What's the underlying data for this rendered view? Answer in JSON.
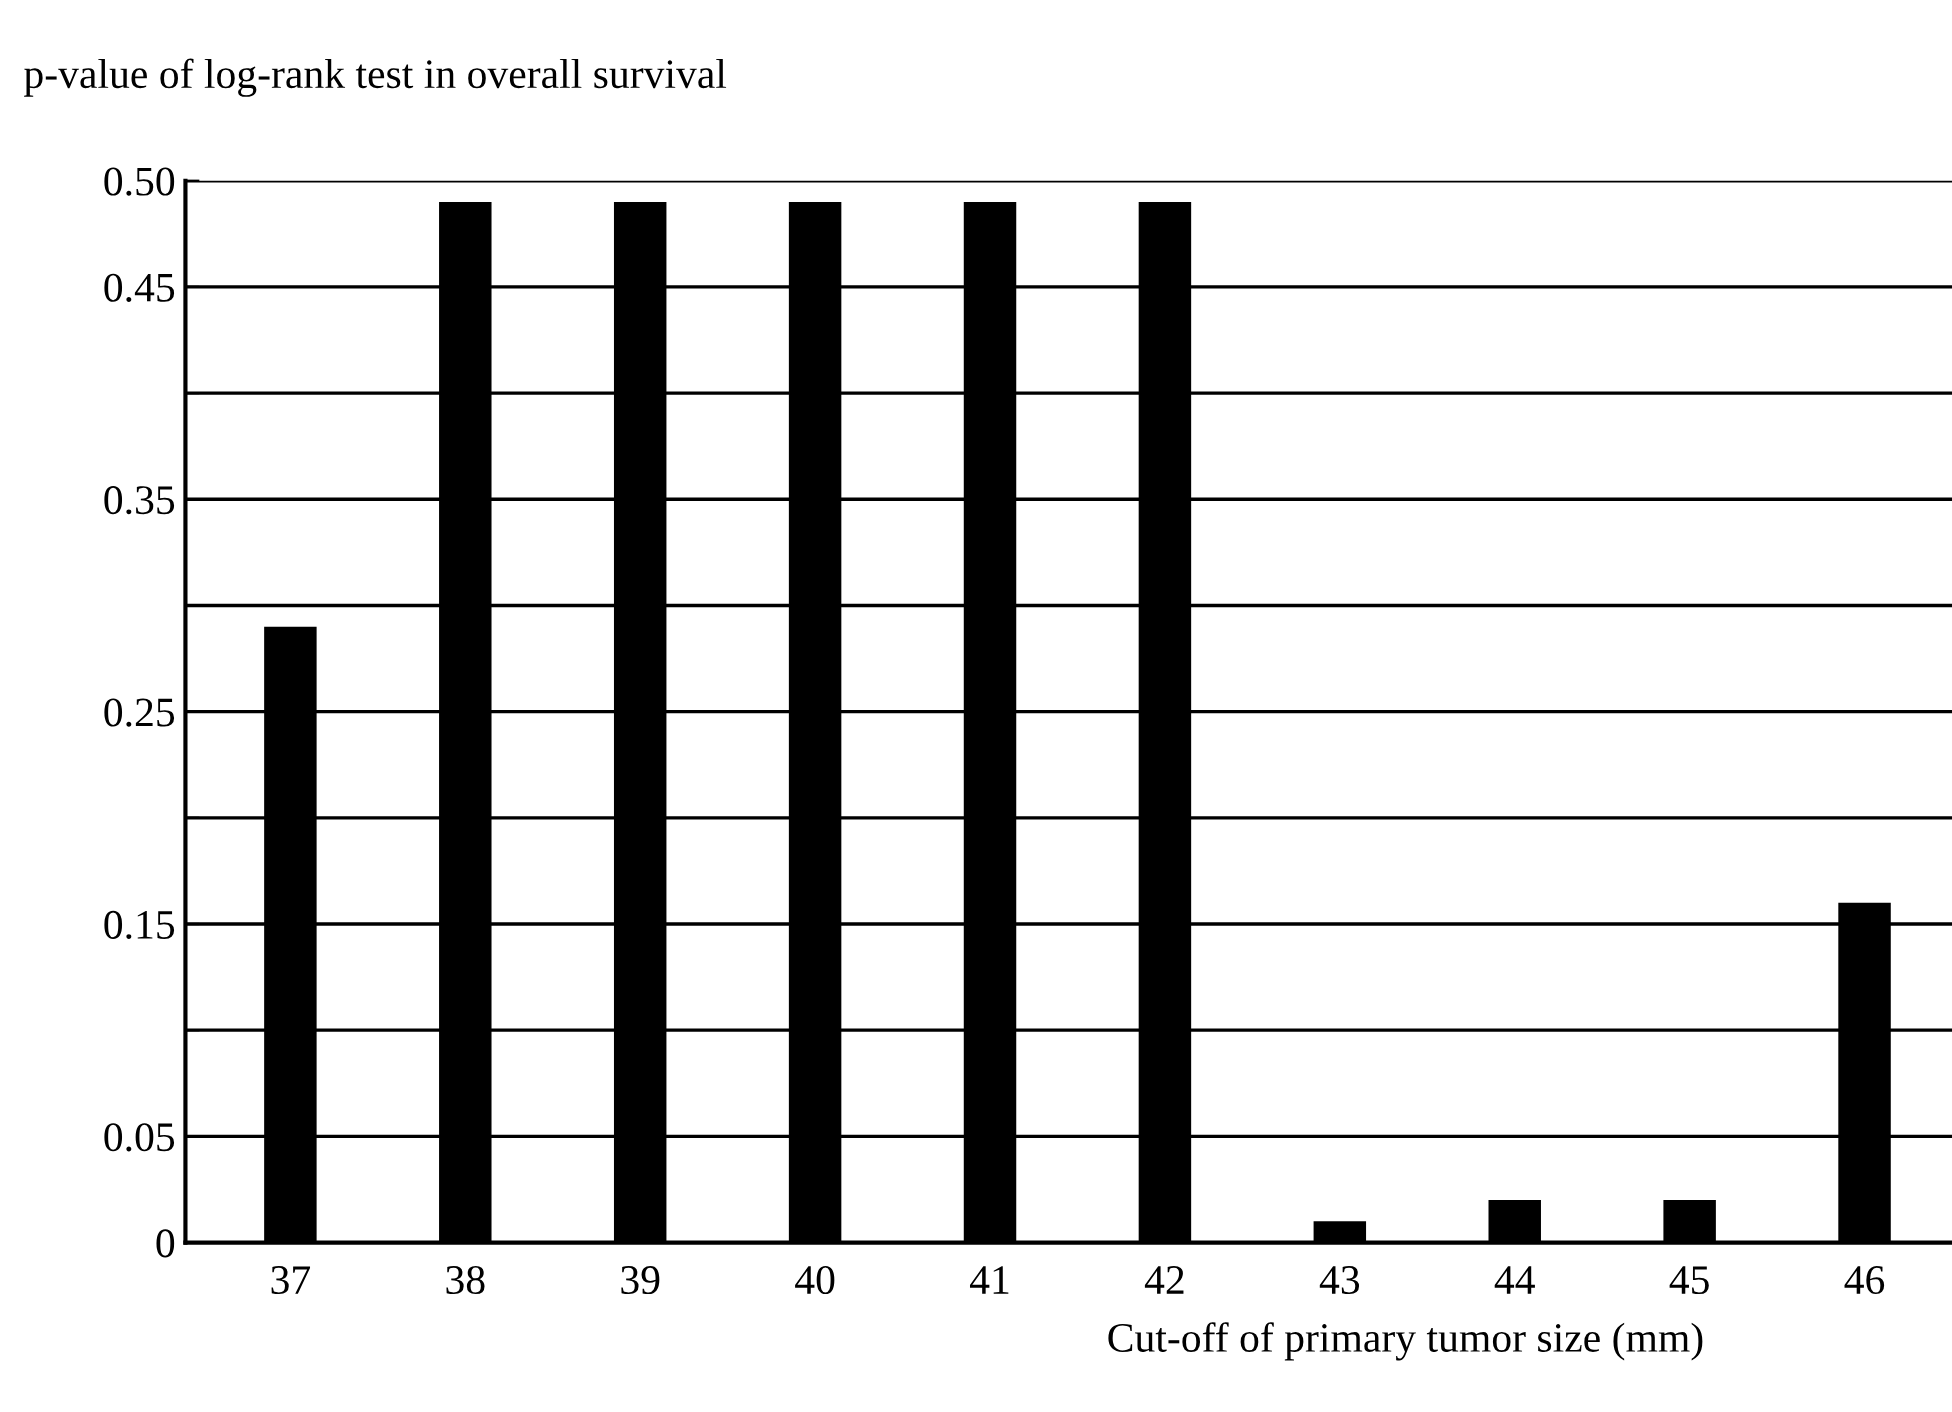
{
  "chart_data": {
    "type": "bar",
    "title": "p-value of log-rank test in overall survival",
    "xlabel": "Cut-off of primary tumor size (mm)",
    "categories": [
      "37",
      "38",
      "39",
      "40",
      "41",
      "42",
      "43",
      "44",
      "45",
      "46"
    ],
    "values": [
      0.29,
      0.49,
      0.49,
      0.49,
      0.49,
      0.49,
      0.01,
      0.02,
      0.02,
      0.16
    ],
    "color": "#000000",
    "ylim": [
      0,
      0.5
    ],
    "yticks": [
      0,
      0.05,
      {
        "value": 0.1,
        "label": null
      },
      0.15,
      {
        "value": 0.2,
        "label": null
      },
      0.25,
      {
        "value": 0.3,
        "label": null
      },
      0.35,
      {
        "value": 0.4,
        "label": null
      },
      0.45,
      {
        "value": 0.5,
        "label": "0.50"
      }
    ],
    "grid": "y",
    "legend": false
  }
}
